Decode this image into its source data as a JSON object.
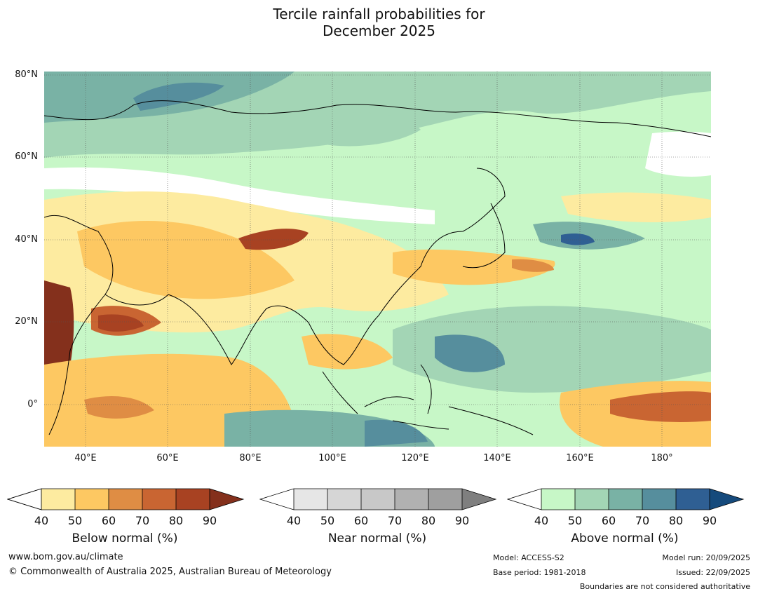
{
  "title": {
    "line1": "Tercile rainfall probabilities for",
    "line2": "December 2025"
  },
  "map": {
    "lat_labels": [
      "80°N",
      "60°N",
      "40°N",
      "20°N",
      "0°"
    ],
    "lon_labels": [
      "40°E",
      "60°E",
      "80°E",
      "100°E",
      "120°E",
      "140°E",
      "160°E",
      "180°"
    ],
    "lat_range": [
      -10,
      80
    ],
    "lon_range": [
      30,
      192
    ]
  },
  "legends": [
    {
      "title": "Below normal (%)",
      "ticks": [
        "40",
        "50",
        "60",
        "70",
        "80",
        "90"
      ],
      "colors": [
        "#ffffff",
        "#fdeba0",
        "#fdc862",
        "#df8d44",
        "#c96532",
        "#a84222",
        "#84301c"
      ]
    },
    {
      "title": "Near normal (%)",
      "ticks": [
        "40",
        "50",
        "60",
        "70",
        "80",
        "90"
      ],
      "colors": [
        "#ffffff",
        "#e6e6e6",
        "#d6d6d6",
        "#c8c8c8",
        "#b1b1b1",
        "#9f9f9f",
        "#7f7f7f"
      ]
    },
    {
      "title": "Above normal (%)",
      "ticks": [
        "40",
        "50",
        "60",
        "70",
        "80",
        "90"
      ],
      "colors": [
        "#ffffff",
        "#c7f7c7",
        "#a3d5b5",
        "#79b2a5",
        "#568e9d",
        "#2f5f93",
        "#154a7c"
      ]
    }
  ],
  "footer": {
    "website": "www.bom.gov.au/climate",
    "copyright": "© Commonwealth of Australia 2025, Australian Bureau of Meteorology",
    "model": "Model: ACCESS-S2",
    "base_period": "Base period: 1981-2018",
    "model_run": "Model run: 20/09/2025",
    "issued": "Issued: 22/09/2025",
    "disclaimer": "Boundaries are not considered authoritative"
  }
}
